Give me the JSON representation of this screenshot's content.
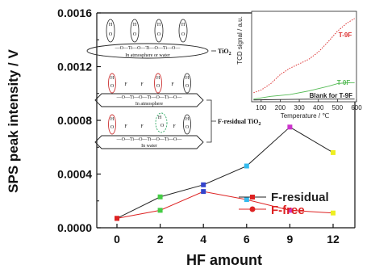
{
  "chart_data": {
    "type": "line",
    "xlabel": "HF amount",
    "ylabel": "SPS peak intensity / V",
    "categories": [
      "0",
      "2",
      "4",
      "6",
      "9",
      "12"
    ],
    "ylim": [
      0,
      0.0016
    ],
    "yticks": [
      "0.0000",
      "0.0004",
      "0.0008",
      "0.0012",
      "0.0016"
    ],
    "series": [
      {
        "name": "F-residual",
        "color": "#222222",
        "values": [
          7e-05,
          0.00023,
          0.00032,
          0.00046,
          0.00075,
          0.00056
        ]
      },
      {
        "name": "F-free",
        "color": "#dd2222",
        "values": [
          7e-05,
          0.00013,
          0.00027,
          0.00021,
          0.00013,
          0.00011
        ]
      }
    ],
    "marker_colors": [
      "#dd2222",
      "#44cc44",
      "#3344cc",
      "#33bbee",
      "#cc33cc",
      "#eeee22"
    ],
    "grid": false,
    "legend": "center-right"
  },
  "schematic": {
    "label_tio2": "TiO",
    "label_tio2_sub": "2",
    "label_fres": "F-residual TiO",
    "label_fres_sub": "2",
    "chain_text": "—O—Ti—O—Ti—O—Ti—O—",
    "caption_top": "In atmosphere or water",
    "caption_mid": "In atmosphere",
    "caption_bot": "In water",
    "atom_h": "H",
    "atom_o": "O",
    "atom_f": "F"
  },
  "inset": {
    "ylabel": "TCD signal / a.u.",
    "xlabel": "Temperature / ℃",
    "xticks": [
      "100",
      "200",
      "300",
      "400",
      "500",
      "600"
    ],
    "xlim": [
      50,
      600
    ],
    "series": [
      {
        "name": "T-9F",
        "color": "#dd3333",
        "x": [
          60,
          100,
          150,
          200,
          250,
          300,
          350,
          400,
          450,
          500,
          550,
          590
        ],
        "y": [
          0.1,
          0.13,
          0.2,
          0.3,
          0.37,
          0.42,
          0.47,
          0.55,
          0.66,
          0.78,
          0.87,
          0.92
        ]
      },
      {
        "name": "T-0F",
        "color": "#55bb55",
        "x": [
          60,
          150,
          250,
          350,
          450,
          500,
          550,
          590
        ],
        "y": [
          0.03,
          0.06,
          0.08,
          0.12,
          0.17,
          0.2,
          0.21,
          0.21
        ]
      },
      {
        "name": "Blank for T-9F",
        "color": "#222222",
        "x": [
          60,
          200,
          400,
          590
        ],
        "y": [
          0.02,
          0.025,
          0.03,
          0.03
        ]
      }
    ]
  }
}
